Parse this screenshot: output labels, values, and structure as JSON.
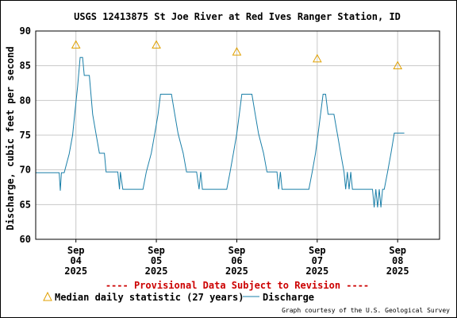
{
  "chart_data": {
    "type": "line",
    "title": "USGS 12413875 St Joe River at Red Ives Ranger Station, ID",
    "ylabel": "Discharge, cubic feet per second",
    "ylim": [
      60,
      90
    ],
    "y_ticks": [
      60,
      65,
      70,
      75,
      80,
      85,
      90
    ],
    "xlim": [
      "2025-09-03T12:00",
      "2025-09-08T12:30"
    ],
    "x_ticks": [
      {
        "x": "2025-09-04T00:00",
        "month": "Sep",
        "day": "04",
        "year": "2025"
      },
      {
        "x": "2025-09-05T00:00",
        "month": "Sep",
        "day": "05",
        "year": "2025"
      },
      {
        "x": "2025-09-06T00:00",
        "month": "Sep",
        "day": "06",
        "year": "2025"
      },
      {
        "x": "2025-09-07T00:00",
        "month": "Sep",
        "day": "07",
        "year": "2025"
      },
      {
        "x": "2025-09-08T00:00",
        "month": "Sep",
        "day": "08",
        "year": "2025"
      }
    ],
    "grid": true,
    "provisional_note": "---- Provisional Data Subject to Revision ----",
    "series": [
      {
        "name": "Median daily statistic (27 years)",
        "kind": "marker",
        "color": "#e0a000",
        "points": [
          {
            "x": "2025-09-04T00:00",
            "y": 88
          },
          {
            "x": "2025-09-05T00:00",
            "y": 88
          },
          {
            "x": "2025-09-06T00:00",
            "y": 87
          },
          {
            "x": "2025-09-07T00:00",
            "y": 86
          },
          {
            "x": "2025-09-08T00:00",
            "y": 85
          }
        ]
      },
      {
        "name": "Discharge",
        "kind": "line",
        "color": "#1a7fa8",
        "points": [
          {
            "x": "2025-09-03T12:00",
            "y": 69.6
          },
          {
            "x": "2025-09-03T19:00",
            "y": 69.6
          },
          {
            "x": "2025-09-03T19:20",
            "y": 67.0
          },
          {
            "x": "2025-09-03T19:40",
            "y": 69.6
          },
          {
            "x": "2025-09-03T20:30",
            "y": 69.6
          },
          {
            "x": "2025-09-03T22:00",
            "y": 72.3
          },
          {
            "x": "2025-09-03T23:00",
            "y": 75.0
          },
          {
            "x": "2025-09-03T23:45",
            "y": 78.5
          },
          {
            "x": "2025-09-04T00:30",
            "y": 82.0
          },
          {
            "x": "2025-09-04T01:15",
            "y": 86.2
          },
          {
            "x": "2025-09-04T02:00",
            "y": 86.2
          },
          {
            "x": "2025-09-04T02:30",
            "y": 83.6
          },
          {
            "x": "2025-09-04T04:00",
            "y": 83.6
          },
          {
            "x": "2025-09-04T05:00",
            "y": 78.0
          },
          {
            "x": "2025-09-04T06:00",
            "y": 75.2
          },
          {
            "x": "2025-09-04T07:00",
            "y": 72.4
          },
          {
            "x": "2025-09-04T08:30",
            "y": 72.4
          },
          {
            "x": "2025-09-04T09:00",
            "y": 69.7
          },
          {
            "x": "2025-09-04T12:30",
            "y": 69.7
          },
          {
            "x": "2025-09-04T13:00",
            "y": 67.2
          },
          {
            "x": "2025-09-04T13:15",
            "y": 69.7
          },
          {
            "x": "2025-09-04T14:00",
            "y": 67.2
          },
          {
            "x": "2025-09-04T20:00",
            "y": 67.2
          },
          {
            "x": "2025-09-04T21:00",
            "y": 69.7
          },
          {
            "x": "2025-09-04T22:30",
            "y": 72.4
          },
          {
            "x": "2025-09-04T23:30",
            "y": 75.2
          },
          {
            "x": "2025-09-05T00:30",
            "y": 78.0
          },
          {
            "x": "2025-09-05T01:15",
            "y": 80.9
          },
          {
            "x": "2025-09-05T04:30",
            "y": 80.9
          },
          {
            "x": "2025-09-05T05:30",
            "y": 78.0
          },
          {
            "x": "2025-09-05T06:30",
            "y": 75.2
          },
          {
            "x": "2025-09-05T08:00",
            "y": 72.4
          },
          {
            "x": "2025-09-05T09:00",
            "y": 69.7
          },
          {
            "x": "2025-09-05T12:00",
            "y": 69.7
          },
          {
            "x": "2025-09-05T12:45",
            "y": 67.2
          },
          {
            "x": "2025-09-05T13:15",
            "y": 69.7
          },
          {
            "x": "2025-09-05T13:45",
            "y": 67.2
          },
          {
            "x": "2025-09-05T21:00",
            "y": 67.2
          },
          {
            "x": "2025-09-05T22:00",
            "y": 69.7
          },
          {
            "x": "2025-09-05T23:00",
            "y": 72.4
          },
          {
            "x": "2025-09-06T00:00",
            "y": 75.2
          },
          {
            "x": "2025-09-06T00:45",
            "y": 78.0
          },
          {
            "x": "2025-09-06T01:30",
            "y": 80.9
          },
          {
            "x": "2025-09-06T04:30",
            "y": 80.9
          },
          {
            "x": "2025-09-06T05:30",
            "y": 78.0
          },
          {
            "x": "2025-09-06T06:30",
            "y": 75.2
          },
          {
            "x": "2025-09-06T08:00",
            "y": 72.4
          },
          {
            "x": "2025-09-06T09:00",
            "y": 69.7
          },
          {
            "x": "2025-09-06T12:00",
            "y": 69.7
          },
          {
            "x": "2025-09-06T12:30",
            "y": 67.2
          },
          {
            "x": "2025-09-06T13:00",
            "y": 69.7
          },
          {
            "x": "2025-09-06T13:30",
            "y": 67.2
          },
          {
            "x": "2025-09-06T21:30",
            "y": 67.2
          },
          {
            "x": "2025-09-06T22:30",
            "y": 69.7
          },
          {
            "x": "2025-09-06T23:30",
            "y": 72.4
          },
          {
            "x": "2025-09-07T00:15",
            "y": 75.2
          },
          {
            "x": "2025-09-07T01:00",
            "y": 78.0
          },
          {
            "x": "2025-09-07T01:45",
            "y": 80.9
          },
          {
            "x": "2025-09-07T02:30",
            "y": 80.9
          },
          {
            "x": "2025-09-07T03:15",
            "y": 78.0
          },
          {
            "x": "2025-09-07T05:00",
            "y": 78.0
          },
          {
            "x": "2025-09-07T06:00",
            "y": 75.2
          },
          {
            "x": "2025-09-07T07:00",
            "y": 72.4
          },
          {
            "x": "2025-09-07T08:00",
            "y": 69.7
          },
          {
            "x": "2025-09-07T08:30",
            "y": 67.2
          },
          {
            "x": "2025-09-07T09:00",
            "y": 69.7
          },
          {
            "x": "2025-09-07T09:30",
            "y": 67.2
          },
          {
            "x": "2025-09-07T10:00",
            "y": 69.7
          },
          {
            "x": "2025-09-07T10:30",
            "y": 67.2
          },
          {
            "x": "2025-09-07T16:30",
            "y": 67.2
          },
          {
            "x": "2025-09-07T17:00",
            "y": 64.6
          },
          {
            "x": "2025-09-07T17:30",
            "y": 67.2
          },
          {
            "x": "2025-09-07T18:00",
            "y": 64.6
          },
          {
            "x": "2025-09-07T18:30",
            "y": 67.2
          },
          {
            "x": "2025-09-07T19:00",
            "y": 64.6
          },
          {
            "x": "2025-09-07T19:30",
            "y": 67.2
          },
          {
            "x": "2025-09-07T20:00",
            "y": 67.2
          },
          {
            "x": "2025-09-07T21:00",
            "y": 69.7
          },
          {
            "x": "2025-09-07T22:00",
            "y": 72.4
          },
          {
            "x": "2025-09-07T23:00",
            "y": 75.3
          },
          {
            "x": "2025-09-08T02:00",
            "y": 75.3
          }
        ]
      }
    ]
  },
  "legend": {
    "median_label": "Median daily statistic (27 years)",
    "discharge_label": "Discharge"
  },
  "credit": "Graph courtesy of the U.S. Geological Survey"
}
